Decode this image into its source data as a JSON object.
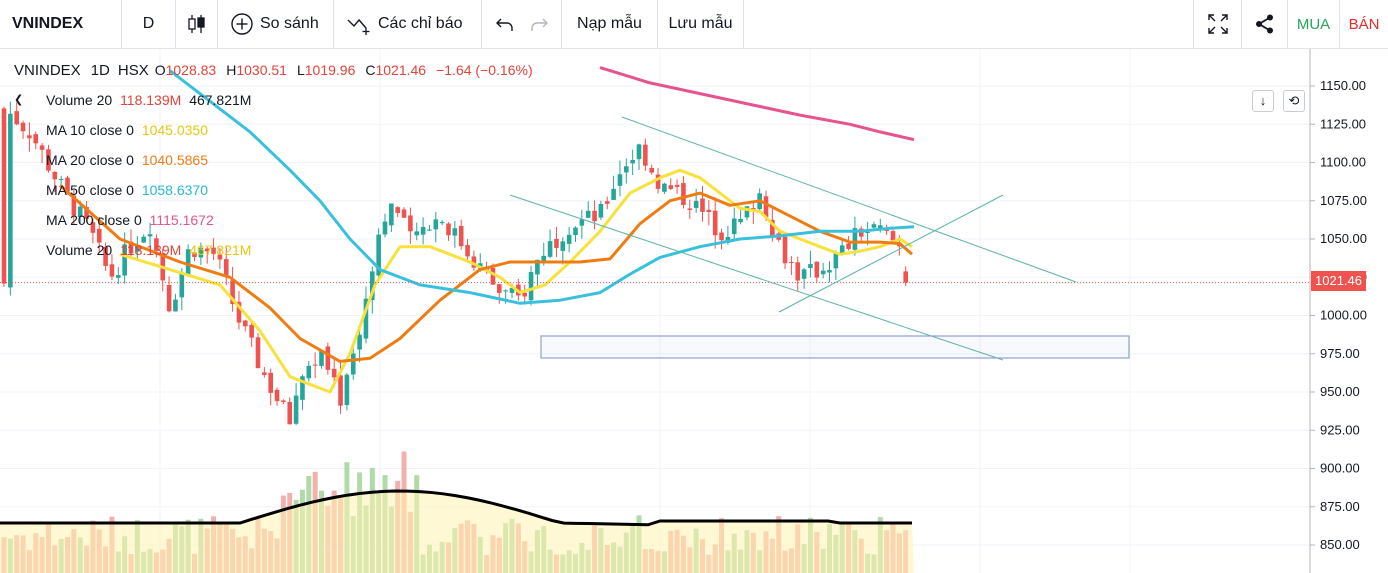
{
  "toolbar": {
    "symbol": "VNINDEX",
    "interval": "D",
    "compare_label": "So sánh",
    "indicators_label": "Các chỉ báo",
    "load_template_label": "Nạp mẫu",
    "save_template_label": "Lưu mẫu",
    "buy_label": "MUA",
    "sell_label": "BÁN",
    "icons": {
      "chart_type": "candlestick-icon",
      "compare": "plus-circle-icon",
      "indicators": "indicator-wave-icon",
      "undo": "undo-icon",
      "redo": "redo-icon",
      "fullscreen": "fullscreen-icon",
      "share": "share-icon"
    }
  },
  "legend": {
    "symbol": "VNINDEX",
    "interval": "1D",
    "exchange": "HSX",
    "open_label": "O",
    "open": "1028.83",
    "high_label": "H",
    "high": "1030.51",
    "low_label": "L",
    "low": "1019.96",
    "close_label": "C",
    "close": "1021.46",
    "change": "−1.64 (−0.16%)",
    "indicators": [
      {
        "name": "Volume 20",
        "v1": "118.139M",
        "v2": "467.821M",
        "color1": "#e0443a",
        "color2": "#131722"
      },
      {
        "name": "MA 10 close 0",
        "v1": "1045.0350",
        "color1": "#f2d615"
      },
      {
        "name": "MA 20 close 0",
        "v1": "1040.5865",
        "color1": "#ef7c13"
      },
      {
        "name": "MA 50 close 0",
        "v1": "1058.6370",
        "color1": "#2ab7d6"
      },
      {
        "name": "MA 200 close 0",
        "v1": "1115.1672",
        "color1": "#e5548f"
      },
      {
        "name": "Volume 20",
        "v1": "118.139M",
        "v2": "467.821M",
        "color1": "#e0443a",
        "color2": "#f2d615"
      }
    ]
  },
  "price_axis": {
    "ticks": [
      "1150.00",
      "1125.00",
      "1100.00",
      "1075.00",
      "1050.00",
      "1025.00",
      "1000.00",
      "975.00",
      "950.00",
      "925.00",
      "900.00",
      "875.00",
      "850.00"
    ],
    "last_price": "1021.46"
  },
  "chart_data": {
    "type": "candlestick",
    "series": "VNINDEX 1D",
    "ylim": [
      840,
      1165
    ],
    "last": {
      "open": 1028.83,
      "high": 1030.51,
      "low": 1019.96,
      "close": 1021.46
    },
    "moving_averages": {
      "ma10": 1045.035,
      "ma20": 1040.5865,
      "ma50": 1058.637,
      "ma200": 1115.1672
    },
    "volume": {
      "last": "118.139M",
      "ma20": "467.821M"
    },
    "colors": {
      "up": "#26a69a",
      "down": "#ef5350",
      "ma10": "#f7e13a",
      "ma20": "#ef7c13",
      "ma50": "#38c0dd",
      "ma200": "#e5548f"
    }
  }
}
